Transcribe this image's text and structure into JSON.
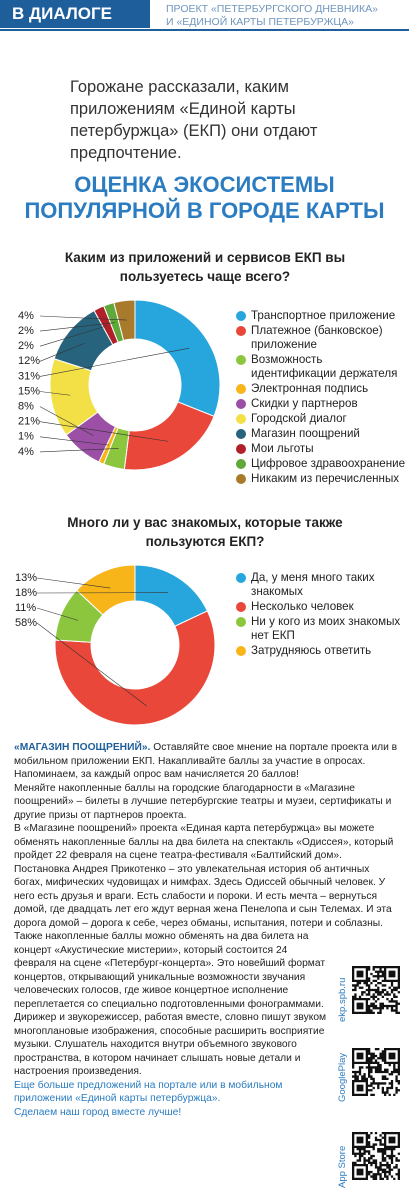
{
  "header": {
    "section": "В ДИАЛОГЕ",
    "project": [
      "ПРОЕКТ «ПЕТЕРБУРГСКОГО ДНЕВНИКА»",
      "И «ЕДИНОЙ КАРТЫ ПЕТЕРБУРЖЦА»"
    ]
  },
  "intro": "Горожане рассказали, каким приложениям «Единой карты петербуржца» (ЕКП) они отдают предпочтение.",
  "title": [
    "ОЦЕНКА ЭКОСИСТЕМЫ",
    "ПОПУЛЯРНОЙ В ГОРОДЕ КАРТЫ"
  ],
  "chart_data": [
    {
      "type": "pie",
      "title": "Каким из приложений и сервисов ЕКП вы пользуетесь чаще всего?",
      "categories": [
        "Транспортное приложение",
        "Платежное (банковское) приложение",
        "Возможность идентификации держателя",
        "Электронная подпись",
        "Скидки у партнеров",
        "Городской диалог",
        "Магазин поощрений",
        "Мои льготы",
        "Цифровое здравоохранение",
        "Никаким из перечисленных"
      ],
      "values": [
        31,
        21,
        4,
        1,
        8,
        15,
        12,
        2,
        2,
        4
      ],
      "value_labels": [
        "31%",
        "21%",
        "4%",
        "1%",
        "8%",
        "15%",
        "12%",
        "2%",
        "2%",
        "4%"
      ],
      "colors": [
        "#27a6de",
        "#e8473a",
        "#8cc63f",
        "#f7b519",
        "#9b4fa5",
        "#f3e047",
        "#27637c",
        "#b1202a",
        "#5fa83a",
        "#a87a2c"
      ]
    },
    {
      "type": "pie",
      "title": "Много ли у вас знакомых, которые также пользуются ЕКП?",
      "categories": [
        "Да, у меня много таких знакомых",
        "Несколько человек",
        "Ни у кого из моих знакомых нет ЕКП",
        "Затрудняюсь ответить"
      ],
      "values": [
        18,
        58,
        11,
        13
      ],
      "value_labels": [
        "18%",
        "58%",
        "11%",
        "13%"
      ],
      "colors": [
        "#27a6de",
        "#e8473a",
        "#8cc63f",
        "#f7b519"
      ]
    }
  ],
  "article": {
    "lead": "«МАГАЗИН ПООЩРЕНИЙ».",
    "paragraphs": [
      "Оставляйте свое мнение на портале проекта или в мобильном приложении ЕКП. Накапливайте баллы за участие в опросах. Напоминаем, за каждый опрос вам начисляется 20 баллов!",
      "Меняйте накопленные баллы на городские благодарности в «Магазине поощрений» – билеты в лучшие петербургские театры и музеи, сертификаты и другие призы от партнеров проекта.",
      "В «Магазине поощрений» проекта «Единая карта петербуржца» вы можете обменять накопленные баллы на два билета на спектакль «Одиссея», который пройдет 22 февраля на сцене театра-фестиваля «Балтийский дом». Постановка Андрея Прикотенко – это увлекательная история об античных богах, мифических чудовищах и нимфах. Здесь Одиссей обычный человек. У него есть друзья и враги. Есть слабости и пороки. И есть мечта – вернуться домой, где двадцать лет его ждут верная жена Пенелопа и сын Телемах. И эта дорога домой – дорога к себе, через обманы, испытания, потери и соблазны.",
      "Также накопленные баллы можно обменять на два билета на концерт «Акустические мистерии», который состоится 24 февраля на сцене «Петербург-концерта». Это новейший формат концертов, открывающий уникальные возможности звучания человеческих голосов, где живое концертное исполнение переплетается со специально подготовленными фонограммами. Дирижер и звукорежиссер, работая вместе, словно пишут звуком многоплановые изображения, способные расширить восприятие музыки. Слушатель находится внутри объемного звукового пространства, в котором начинает слышать новые детали и настроения произведения."
    ]
  },
  "footer": [
    "Еще больше предложений на портале или в мобильном приложении «Единой карты петербуржца».",
    "Сделаем наш город вместе лучше!"
  ],
  "qr_labels": [
    "ekp.spb.ru",
    "GooglePlay",
    "App Store"
  ]
}
